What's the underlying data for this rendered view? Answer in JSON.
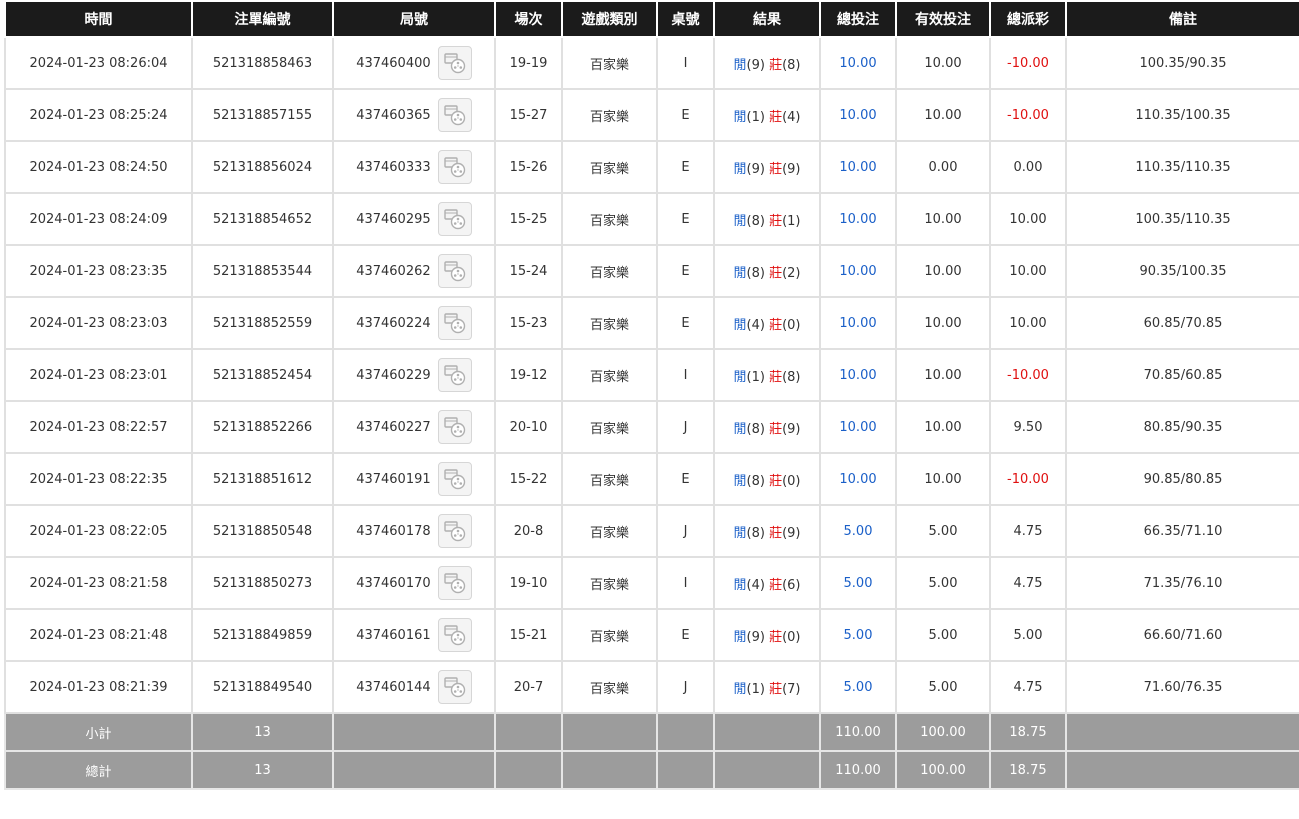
{
  "headers": [
    "時間",
    "注單編號",
    "局號",
    "場次",
    "遊戲類別",
    "桌號",
    "結果",
    "總投注",
    "有效投注",
    "總派彩",
    "備註"
  ],
  "labels": {
    "player": "閒",
    "banker": "莊"
  },
  "rows": [
    {
      "time": "2024-01-23 08:26:04",
      "bet_id": "521318858463",
      "round": "437460400",
      "shoe": "19-19",
      "game": "百家樂",
      "table": "I",
      "p": "(9)",
      "b": "(8)",
      "total": "10.00",
      "valid": "10.00",
      "payout": "-10.00",
      "note": "100.35/90.35"
    },
    {
      "time": "2024-01-23 08:25:24",
      "bet_id": "521318857155",
      "round": "437460365",
      "shoe": "15-27",
      "game": "百家樂",
      "table": "E",
      "p": "(1)",
      "b": "(4)",
      "total": "10.00",
      "valid": "10.00",
      "payout": "-10.00",
      "note": "110.35/100.35"
    },
    {
      "time": "2024-01-23 08:24:50",
      "bet_id": "521318856024",
      "round": "437460333",
      "shoe": "15-26",
      "game": "百家樂",
      "table": "E",
      "p": "(9)",
      "b": "(9)",
      "total": "10.00",
      "valid": "0.00",
      "payout": "0.00",
      "note": "110.35/110.35"
    },
    {
      "time": "2024-01-23 08:24:09",
      "bet_id": "521318854652",
      "round": "437460295",
      "shoe": "15-25",
      "game": "百家樂",
      "table": "E",
      "p": "(8)",
      "b": "(1)",
      "total": "10.00",
      "valid": "10.00",
      "payout": "10.00",
      "note": "100.35/110.35"
    },
    {
      "time": "2024-01-23 08:23:35",
      "bet_id": "521318853544",
      "round": "437460262",
      "shoe": "15-24",
      "game": "百家樂",
      "table": "E",
      "p": "(8)",
      "b": "(2)",
      "total": "10.00",
      "valid": "10.00",
      "payout": "10.00",
      "note": "90.35/100.35"
    },
    {
      "time": "2024-01-23 08:23:03",
      "bet_id": "521318852559",
      "round": "437460224",
      "shoe": "15-23",
      "game": "百家樂",
      "table": "E",
      "p": "(4)",
      "b": "(0)",
      "total": "10.00",
      "valid": "10.00",
      "payout": "10.00",
      "note": "60.85/70.85"
    },
    {
      "time": "2024-01-23 08:23:01",
      "bet_id": "521318852454",
      "round": "437460229",
      "shoe": "19-12",
      "game": "百家樂",
      "table": "I",
      "p": "(1)",
      "b": "(8)",
      "total": "10.00",
      "valid": "10.00",
      "payout": "-10.00",
      "note": "70.85/60.85"
    },
    {
      "time": "2024-01-23 08:22:57",
      "bet_id": "521318852266",
      "round": "437460227",
      "shoe": "20-10",
      "game": "百家樂",
      "table": "J",
      "p": "(8)",
      "b": "(9)",
      "total": "10.00",
      "valid": "10.00",
      "payout": "9.50",
      "note": "80.85/90.35"
    },
    {
      "time": "2024-01-23 08:22:35",
      "bet_id": "521318851612",
      "round": "437460191",
      "shoe": "15-22",
      "game": "百家樂",
      "table": "E",
      "p": "(8)",
      "b": "(0)",
      "total": "10.00",
      "valid": "10.00",
      "payout": "-10.00",
      "note": "90.85/80.85"
    },
    {
      "time": "2024-01-23 08:22:05",
      "bet_id": "521318850548",
      "round": "437460178",
      "shoe": "20-8",
      "game": "百家樂",
      "table": "J",
      "p": "(8)",
      "b": "(9)",
      "total": "5.00",
      "valid": "5.00",
      "payout": "4.75",
      "note": "66.35/71.10"
    },
    {
      "time": "2024-01-23 08:21:58",
      "bet_id": "521318850273",
      "round": "437460170",
      "shoe": "19-10",
      "game": "百家樂",
      "table": "I",
      "p": "(4)",
      "b": "(6)",
      "total": "5.00",
      "valid": "5.00",
      "payout": "4.75",
      "note": "71.35/76.10"
    },
    {
      "time": "2024-01-23 08:21:48",
      "bet_id": "521318849859",
      "round": "437460161",
      "shoe": "15-21",
      "game": "百家樂",
      "table": "E",
      "p": "(9)",
      "b": "(0)",
      "total": "5.00",
      "valid": "5.00",
      "payout": "5.00",
      "note": "66.60/71.60"
    },
    {
      "time": "2024-01-23 08:21:39",
      "bet_id": "521318849540",
      "round": "437460144",
      "shoe": "20-7",
      "game": "百家樂",
      "table": "J",
      "p": "(1)",
      "b": "(7)",
      "total": "5.00",
      "valid": "5.00",
      "payout": "4.75",
      "note": "71.60/76.35"
    }
  ],
  "subtotal": {
    "label": "小計",
    "count": "13",
    "total": "110.00",
    "valid": "100.00",
    "payout": "18.75"
  },
  "grandtotal": {
    "label": "總計",
    "count": "13",
    "total": "110.00",
    "valid": "100.00",
    "payout": "18.75"
  },
  "icons": {
    "replay": "video-replay-icon"
  },
  "colors": {
    "header_bg": "#1b1b1b",
    "footer_bg": "#9c9c9c",
    "link_blue": "#1a5fc8",
    "loss_red": "#e01010"
  }
}
